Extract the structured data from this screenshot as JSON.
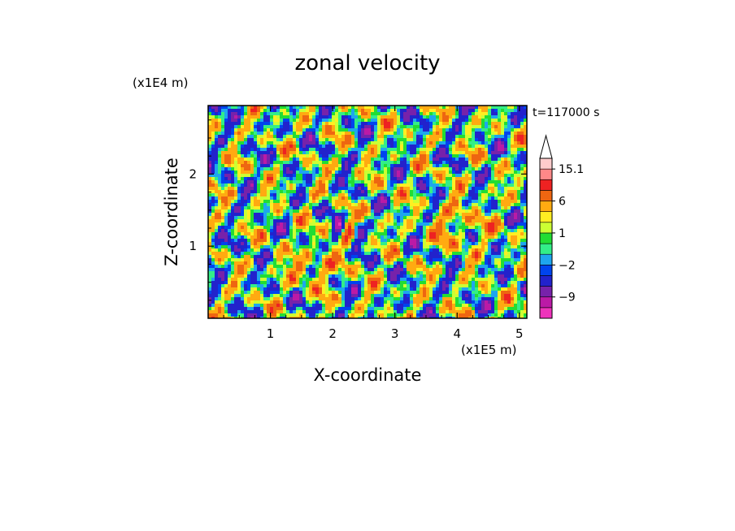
{
  "chart_data": {
    "type": "heatmap",
    "title": "zonal velocity",
    "xlabel": "X-coordinate",
    "ylabel": "Z-coordinate",
    "x_unit": "(x1E5 m)",
    "y_unit": "(x1E4 m)",
    "time_label": "t=117000 s",
    "xlim": [
      0,
      5.12
    ],
    "ylim": [
      0,
      2.95
    ],
    "x_ticks": [
      1,
      2,
      3,
      4,
      5
    ],
    "y_ticks": [
      1,
      2
    ],
    "colorbar": {
      "levels": [
        -15,
        -12,
        -9,
        -6,
        -3,
        -2,
        -1,
        0,
        1,
        2,
        3,
        6,
        9,
        12,
        15.1
      ],
      "colors": [
        "#ee33bb",
        "#bb1aa6",
        "#7722aa",
        "#2222cc",
        "#0044ee",
        "#1ea6ee",
        "#33ee88",
        "#22dd33",
        "#ccff33",
        "#ffee22",
        "#ffaa11",
        "#ee6611",
        "#ee2222",
        "#ff8888",
        "#ffcccc"
      ],
      "tick_labels": [
        {
          "value": 15.1,
          "label": "15.1"
        },
        {
          "value": 6,
          "label": "6"
        },
        {
          "value": 1,
          "label": "1"
        },
        {
          "value": -2,
          "label": "−2"
        },
        {
          "value": -9,
          "label": "−9"
        }
      ],
      "extend_max": true
    }
  }
}
